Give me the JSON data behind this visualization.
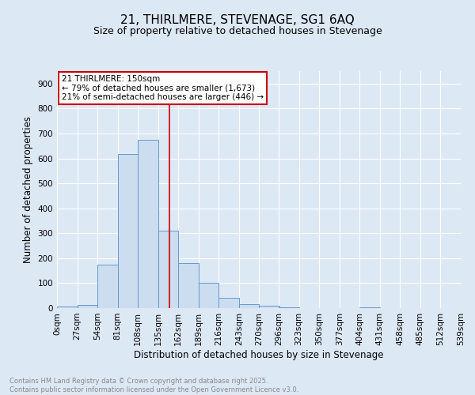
{
  "title": "21, THIRLMERE, STEVENAGE, SG1 6AQ",
  "subtitle": "Size of property relative to detached houses in Stevenage",
  "xlabel": "Distribution of detached houses by size in Stevenage",
  "ylabel": "Number of detached properties",
  "bin_edges": [
    0,
    27,
    54,
    81,
    108,
    135,
    162,
    189,
    216,
    243,
    270,
    296,
    323,
    350,
    377,
    404,
    431,
    458,
    485,
    512,
    539
  ],
  "bin_labels": [
    "0sqm",
    "27sqm",
    "54sqm",
    "81sqm",
    "108sqm",
    "135sqm",
    "162sqm",
    "189sqm",
    "216sqm",
    "243sqm",
    "270sqm",
    "296sqm",
    "323sqm",
    "350sqm",
    "377sqm",
    "404sqm",
    "431sqm",
    "458sqm",
    "485sqm",
    "512sqm",
    "539sqm"
  ],
  "bar_heights": [
    7,
    14,
    175,
    617,
    675,
    310,
    180,
    100,
    42,
    15,
    11,
    4,
    1,
    0,
    0,
    3,
    0,
    0,
    0,
    0
  ],
  "bar_color": "#ccddf0",
  "bar_edge_color": "#6699cc",
  "property_line_x": 150,
  "property_line_color": "#cc0000",
  "annotation_line1": "21 THIRLMERE: 150sqm",
  "annotation_line2": "← 79% of detached houses are smaller (1,673)",
  "annotation_line3": "21% of semi-detached houses are larger (446) →",
  "annotation_box_color": "#cc0000",
  "ylim": [
    0,
    950
  ],
  "yticks": [
    0,
    100,
    200,
    300,
    400,
    500,
    600,
    700,
    800,
    900
  ],
  "background_color": "#dde8f5",
  "grid_color": "#ffffff",
  "footer_line1": "Contains HM Land Registry data © Crown copyright and database right 2025.",
  "footer_line2": "Contains public sector information licensed under the Open Government Licence v3.0.",
  "footer_color": "#888888",
  "title_fontsize": 11,
  "subtitle_fontsize": 9,
  "label_fontsize": 8.5,
  "tick_fontsize": 7.5,
  "annotation_fontsize": 7.5
}
